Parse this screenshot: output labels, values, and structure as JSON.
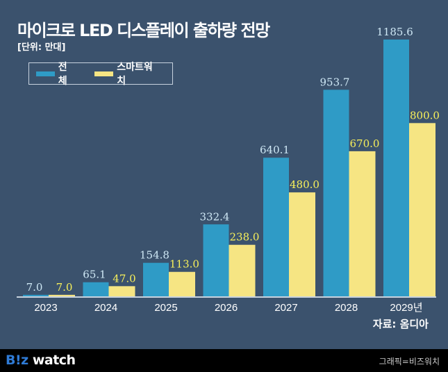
{
  "chart_data": {
    "type": "bar",
    "title": "마이크로 LED 디스플레이 출하량 전망",
    "subtitle": "[단위: 만대]",
    "categories": [
      "2023",
      "2024",
      "2025",
      "2026",
      "2027",
      "2028",
      "2029년"
    ],
    "series": [
      {
        "name": "전체",
        "color": "#2f9bc6",
        "label_color": "#cfe8f5",
        "values": [
          7.0,
          65.1,
          154.8,
          332.4,
          640.1,
          953.7,
          1185.6
        ]
      },
      {
        "name": "스마트워치",
        "color": "#f6e583",
        "label_color": "#f8f05a",
        "values": [
          7.0,
          47.0,
          113.0,
          238.0,
          480.0,
          670.0,
          800.0
        ]
      }
    ],
    "ylim": [
      0,
      1185.6
    ],
    "grid": false,
    "legend": "top-left",
    "source": "자료: 옴디아"
  },
  "footer": {
    "logo": "B!z watch",
    "logo_b": "B!z",
    "logo_rest": " watch",
    "credit": "그래픽=비즈워치"
  }
}
